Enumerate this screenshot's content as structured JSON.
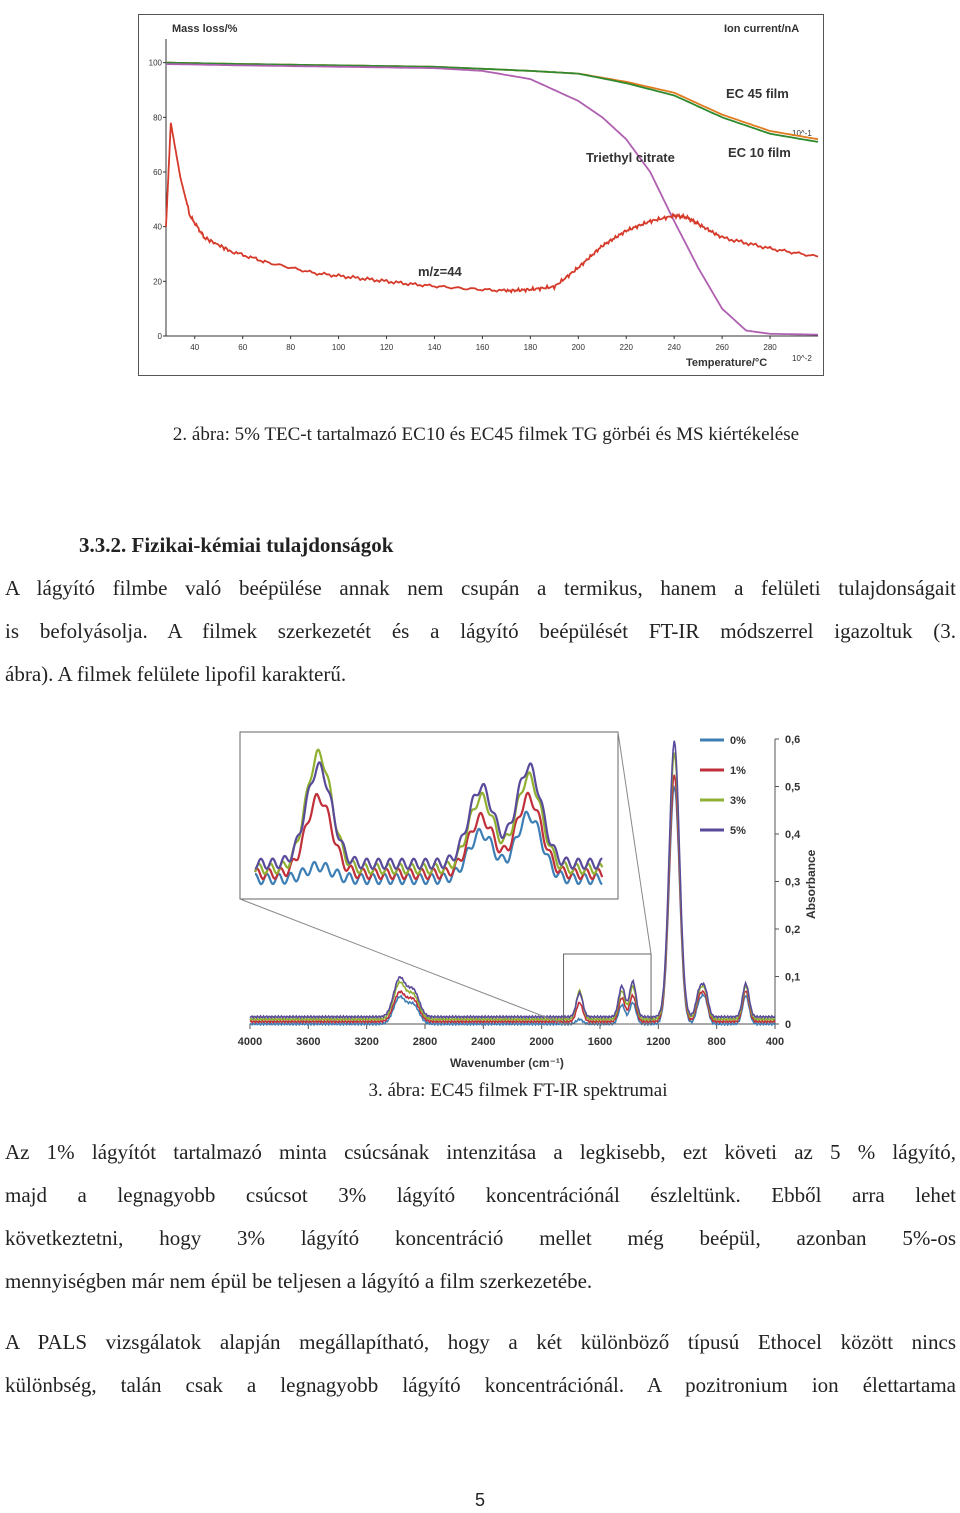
{
  "figure1": {
    "chart_data": {
      "type": "line",
      "left_axis_label": "Mass loss/%",
      "right_axis_label": "Ion current/nA",
      "xlabel": "Temperature/°C",
      "x_ticks": [
        "40",
        "60",
        "80",
        "100",
        "120",
        "140",
        "160",
        "180",
        "200",
        "220",
        "240",
        "260",
        "280"
      ],
      "y_ticks": [
        "0",
        "20",
        "40",
        "60",
        "80",
        "100"
      ],
      "right_ticks": [
        "10^-1",
        "10^-2"
      ],
      "xlim": [
        28,
        300
      ],
      "ylim": [
        0,
        105
      ],
      "series": [
        {
          "name": "EC 45 film",
          "color": "#e07b20",
          "x": [
            28,
            60,
            100,
            140,
            180,
            200,
            220,
            240,
            260,
            280,
            300
          ],
          "y": [
            100,
            99.5,
            99,
            98.5,
            97,
            96,
            93,
            89,
            81,
            75,
            72
          ]
        },
        {
          "name": "EC 10 film",
          "color": "#2f8a2f",
          "x": [
            28,
            60,
            100,
            140,
            180,
            200,
            220,
            240,
            260,
            280,
            300
          ],
          "y": [
            100,
            99.5,
            99,
            98.5,
            97,
            96,
            92.5,
            88,
            80,
            74,
            71
          ]
        },
        {
          "name": "Triethyl citrate",
          "color": "#b060b0",
          "x": [
            28,
            60,
            100,
            140,
            160,
            180,
            200,
            210,
            220,
            230,
            240,
            250,
            260,
            270,
            280,
            300
          ],
          "y": [
            99.5,
            99,
            98.5,
            98,
            97,
            94,
            86,
            80,
            72,
            60,
            42,
            25,
            10,
            2,
            0.8,
            0.5
          ]
        },
        {
          "name": "m/z=44",
          "color": "#d63a2a",
          "x": [
            28,
            30,
            34,
            38,
            44,
            55,
            70,
            90,
            110,
            130,
            150,
            170,
            180,
            190,
            200,
            210,
            220,
            230,
            240,
            245,
            250,
            260,
            280,
            300
          ],
          "y": [
            40,
            78,
            58,
            44,
            36,
            31,
            27,
            23,
            21,
            19,
            17.5,
            16.5,
            17,
            18,
            25,
            33,
            38.5,
            42,
            44,
            43.5,
            41,
            36,
            32,
            29
          ]
        }
      ],
      "annotations": [
        "EC 45 film",
        "Triethyl citrate",
        "EC 10 film",
        "m/z=44"
      ]
    },
    "caption": "2. ábra: 5% TEC-t tartalmazó EC10 és EC45 filmek TG görbéi és MS kiértékelése"
  },
  "section": {
    "heading": "3.3.2. Fizikai-kémiai tulajdonságok",
    "paragraph1_lines": [
      "A lágyító filmbe való beépülése annak nem csupán a termikus, hanem a felületi tulajdonságait",
      "is befolyásolja. A filmek szerkezetét és a lágyító beépülését FT-IR módszerrel igazoltuk (3.",
      "ábra). A filmek felülete lipofil karakterű."
    ]
  },
  "figure2": {
    "chart_data": {
      "type": "line",
      "xlabel": "Wavenumber (cm⁻¹)",
      "ylabel": "Absorbance",
      "x_ticks": [
        "4000",
        "3600",
        "3200",
        "2800",
        "2400",
        "2000",
        "1600",
        "1200",
        "800",
        "400"
      ],
      "y_ticks": [
        "0",
        "0,1",
        "0,2",
        "0,3",
        "0,4",
        "0,5",
        "0,6"
      ],
      "xlim": [
        4000,
        400
      ],
      "ylim": [
        0,
        0.6
      ],
      "legend": [
        "0%",
        "1%",
        "3%",
        "5%"
      ],
      "colors": [
        "#3d7fb5",
        "#c0303a",
        "#8fb030",
        "#5a4a9a"
      ],
      "peaks_main": [
        {
          "x": 2975,
          "h": [
            0.055,
            0.06,
            0.075,
            0.08
          ]
        },
        {
          "x": 2880,
          "h": [
            0.04,
            0.045,
            0.05,
            0.055
          ]
        },
        {
          "x": 1740,
          "h": [
            0.01,
            0.04,
            0.06,
            0.05
          ]
        },
        {
          "x": 1450,
          "h": [
            0.04,
            0.05,
            0.06,
            0.065
          ]
        },
        {
          "x": 1375,
          "h": [
            0.045,
            0.055,
            0.07,
            0.075
          ]
        },
        {
          "x": 1090,
          "h": [
            0.5,
            0.52,
            0.56,
            0.58
          ]
        },
        {
          "x": 920,
          "h": [
            0.04,
            0.045,
            0.05,
            0.05
          ]
        },
        {
          "x": 880,
          "h": [
            0.05,
            0.05,
            0.055,
            0.055
          ]
        },
        {
          "x": 600,
          "h": [
            0.06,
            0.065,
            0.07,
            0.07
          ]
        }
      ],
      "inset": {
        "range": [
          1850,
          1250
        ],
        "peaks": [
          {
            "x": 1740,
            "h": [
              0.005,
              0.03,
              0.045,
              0.038
            ]
          },
          {
            "x": 1460,
            "h": [
              0.018,
              0.022,
              0.028,
              0.03
            ]
          },
          {
            "x": 1378,
            "h": [
              0.025,
              0.03,
              0.036,
              0.038
            ]
          }
        ]
      }
    },
    "caption": "3. ábra: EC45 filmek FT-IR spektrumai"
  },
  "paragraph2_lines": [
    "Az 1% lágyítót tartalmazó minta csúcsának intenzitása a legkisebb, ezt követi az 5 % lágyító,",
    "majd a legnagyobb csúcsot 3% lágyító koncentrációnál észleltünk. Ebből arra lehet",
    "következtetni, hogy 3% lágyító koncentráció mellet még beépül, azonban 5%-os",
    "mennyiségben már nem épül be teljesen a lágyító a film szerkezetébe."
  ],
  "paragraph3_lines": [
    "A PALS vizsgálatok alapján megállapítható, hogy a két különböző típusú Ethocel között nincs",
    "különbség, talán csak a legnagyobb lágyító koncentrációnál. A pozitronium ion élettartama"
  ],
  "page_number": "5"
}
